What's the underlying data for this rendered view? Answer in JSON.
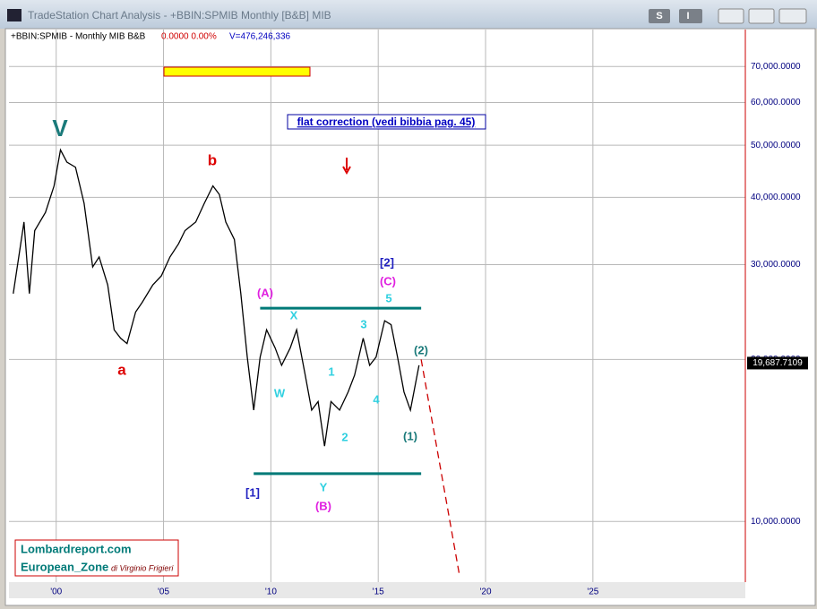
{
  "window": {
    "title": "TradeStation Chart Analysis - +BBIN:SPMIB Monthly [B&B]  MIB",
    "buttons": [
      "S",
      "I"
    ]
  },
  "chart_data": {
    "type": "line",
    "scale": "log",
    "grid": true,
    "color": "#000000",
    "info": {
      "symbol": "+BBIN:SPMIB - Monthly   MIB  B&B",
      "change": "0.0000  0.00%",
      "volume": "V=476,246,336"
    },
    "x": [
      1998.0,
      1998.5,
      1998.75,
      1999.0,
      1999.5,
      1999.9,
      2000.2,
      2000.5,
      2000.9,
      2001.3,
      2001.7,
      2002.0,
      2002.4,
      2002.7,
      2003.0,
      2003.3,
      2003.7,
      2004.0,
      2004.5,
      2004.9,
      2005.3,
      2005.7,
      2006.0,
      2006.5,
      2006.9,
      2007.3,
      2007.6,
      2007.9,
      2008.3,
      2008.6,
      2008.9,
      2009.2,
      2009.5,
      2009.8,
      2010.2,
      2010.5,
      2010.9,
      2011.2,
      2011.6,
      2011.9,
      2012.2,
      2012.5,
      2012.8,
      2013.2,
      2013.6,
      2013.9,
      2014.3,
      2014.6,
      2014.9,
      2015.3,
      2015.6,
      2015.9,
      2016.2,
      2016.5,
      2016.9
    ],
    "values": [
      26500,
      36000,
      26500,
      34700,
      37500,
      42000,
      49000,
      46500,
      45500,
      39000,
      29700,
      31000,
      27500,
      22700,
      21900,
      21400,
      24500,
      25500,
      27500,
      28600,
      31000,
      32800,
      34700,
      36000,
      39000,
      42000,
      40500,
      36000,
      33400,
      26500,
      20200,
      16100,
      20200,
      22700,
      21000,
      19500,
      21000,
      22700,
      18700,
      16100,
      16700,
      13800,
      16700,
      16100,
      17400,
      18700,
      21900,
      19500,
      20200,
      23600,
      23200,
      20200,
      17400,
      16100,
      19500
    ],
    "forecast": {
      "x": [
        2017.0,
        2018.8
      ],
      "values": [
        20000,
        7880
      ],
      "color": "#cc0000"
    },
    "levels": [
      {
        "value": 24900,
        "x": [
          2009.5,
          2017.0
        ]
      },
      {
        "value": 12270,
        "x": [
          2009.2,
          2017.0
        ]
      }
    ],
    "level_color": "#007a78",
    "last_price": {
      "value": 19687.7109,
      "label": "19,687.7109"
    },
    "xlim": [
      1997.8,
      2032.1
    ],
    "ylim": [
      7200,
      82000
    ],
    "xticks": [
      {
        "value": 2000,
        "label": "'00"
      },
      {
        "value": 2005,
        "label": "'05"
      },
      {
        "value": 2010,
        "label": "'10"
      },
      {
        "value": 2015,
        "label": "'15"
      },
      {
        "value": 2020,
        "label": "'20"
      },
      {
        "value": 2025,
        "label": "'25"
      }
    ],
    "yticks": [
      {
        "value": 10000,
        "label": "10,000.0000"
      },
      {
        "value": 20000,
        "label": "20,000.0000"
      },
      {
        "value": 30000,
        "label": "30,000.0000"
      },
      {
        "value": 40000,
        "label": "40,000.0000"
      },
      {
        "value": 50000,
        "label": "50,000.0000"
      },
      {
        "value": 60000,
        "label": "60,000.0000"
      },
      {
        "value": 70000,
        "label": "70,000.0000"
      }
    ],
    "annotations": [
      "V",
      "b",
      "a",
      "(A)",
      "X",
      "W",
      "1",
      "2",
      "3",
      "4",
      "5",
      "[2]",
      "(C)",
      "(2)",
      "(1)",
      "[1]",
      "Y",
      "(B)"
    ],
    "note": "flat correction (vedi bibbia pag. 45)",
    "logo": {
      "site": "Lombardreport.com",
      "zone": "European_Zone",
      "author": "di Virginio Frigieri"
    }
  }
}
